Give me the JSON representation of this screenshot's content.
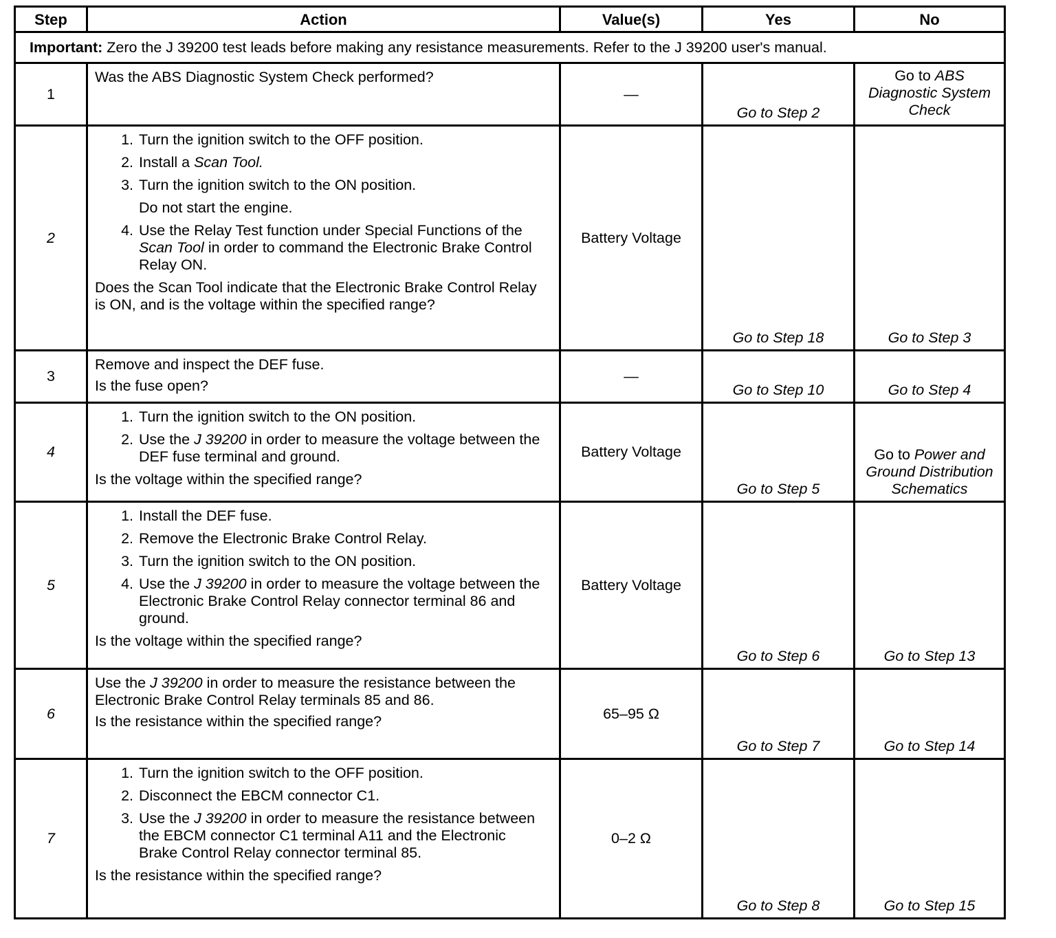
{
  "headers": [
    "Step",
    "Action",
    "Value(s)",
    "Yes",
    "No"
  ],
  "important": {
    "label": "Important:",
    "text": " Zero the J 39200 test leads before making any resistance measurements. Refer to the J 39200 user's manual."
  },
  "rows": [
    {
      "step": "1",
      "step_italic": false,
      "action": [
        {
          "type": "para",
          "parts": [
            {
              "t": "Was the ABS Diagnostic System Check performed?"
            }
          ]
        }
      ],
      "value": "—",
      "yes": [
        {
          "t": "Go to Step 2",
          "i": true
        }
      ],
      "no": [
        {
          "t": "Go to "
        },
        {
          "t": "ABS Diagnostic System Check",
          "i": true
        }
      ]
    },
    {
      "step": "2",
      "step_italic": true,
      "action": [
        {
          "type": "item",
          "num": "1.",
          "parts": [
            {
              "t": "Turn the ignition switch to the OFF position."
            }
          ]
        },
        {
          "type": "item",
          "num": "2.",
          "parts": [
            {
              "t": "Install a "
            },
            {
              "t": "Scan Tool.",
              "i": true
            }
          ]
        },
        {
          "type": "item",
          "num": "3.",
          "parts": [
            {
              "t": "Turn the ignition switch to the ON position."
            }
          ]
        },
        {
          "type": "cont",
          "parts": [
            {
              "t": "Do not start the engine."
            }
          ]
        },
        {
          "type": "item",
          "num": "4.",
          "parts": [
            {
              "t": "Use the Relay Test function under Special Functions of the "
            },
            {
              "t": "Scan Tool",
              "i": true
            },
            {
              "t": " in order to command the Electronic Brake Control Relay ON."
            }
          ]
        },
        {
          "type": "para",
          "parts": [
            {
              "t": "Does the Scan Tool indicate that the Electronic Brake Control Relay is ON, and is the voltage within the specified range?"
            }
          ]
        }
      ],
      "value": "Battery Voltage",
      "yes": [
        {
          "t": "Go to Step 18",
          "i": true
        }
      ],
      "no": [
        {
          "t": "Go to Step 3",
          "i": true
        }
      ]
    },
    {
      "step": "3",
      "step_italic": false,
      "action": [
        {
          "type": "para",
          "parts": [
            {
              "t": "Remove and inspect the DEF fuse."
            }
          ]
        },
        {
          "type": "para",
          "parts": [
            {
              "t": "Is the fuse open?"
            }
          ]
        }
      ],
      "value": "—",
      "yes": [
        {
          "t": "Go to Step 10",
          "i": true
        }
      ],
      "no": [
        {
          "t": "Go to Step 4",
          "i": true
        }
      ]
    },
    {
      "step": "4",
      "step_italic": true,
      "action": [
        {
          "type": "item",
          "num": "1.",
          "parts": [
            {
              "t": "Turn the ignition switch to the ON position."
            }
          ]
        },
        {
          "type": "item",
          "num": "2.",
          "parts": [
            {
              "t": "Use the "
            },
            {
              "t": "J 39200",
              "i": true
            },
            {
              "t": " in order to measure the voltage between the DEF fuse terminal and ground."
            }
          ]
        },
        {
          "type": "para",
          "parts": [
            {
              "t": "Is the voltage within the specified range?"
            }
          ]
        }
      ],
      "value": "Battery Voltage",
      "yes": [
        {
          "t": "Go to Step 5",
          "i": true
        }
      ],
      "no": [
        {
          "t": "Go to "
        },
        {
          "t": "Power and Ground Distribution Schematics",
          "i": true
        }
      ]
    },
    {
      "step": "5",
      "step_italic": true,
      "action": [
        {
          "type": "item",
          "num": "1.",
          "parts": [
            {
              "t": "Install the DEF fuse."
            }
          ]
        },
        {
          "type": "item",
          "num": "2.",
          "parts": [
            {
              "t": "Remove the Electronic Brake Control Relay."
            }
          ]
        },
        {
          "type": "item",
          "num": "3.",
          "parts": [
            {
              "t": "Turn the ignition switch to the ON position."
            }
          ]
        },
        {
          "type": "item",
          "num": "4.",
          "parts": [
            {
              "t": "Use the "
            },
            {
              "t": "J 39200",
              "i": true
            },
            {
              "t": " in order to measure the voltage between the Electronic Brake Control Relay connector terminal 86 and ground."
            }
          ]
        },
        {
          "type": "para",
          "parts": [
            {
              "t": "Is the voltage within the specified range?"
            }
          ]
        }
      ],
      "value": "Battery Voltage",
      "yes": [
        {
          "t": "Go to Step 6",
          "i": true
        }
      ],
      "no": [
        {
          "t": "Go to Step 13",
          "i": true
        }
      ]
    },
    {
      "step": "6",
      "step_italic": true,
      "action": [
        {
          "type": "para",
          "parts": [
            {
              "t": "Use the "
            },
            {
              "t": "J 39200",
              "i": true
            },
            {
              "t": " in order to measure the resistance between the Electronic Brake Control Relay terminals 85 and 86."
            }
          ]
        },
        {
          "type": "para",
          "parts": [
            {
              "t": "Is the resistance within the specified range?"
            }
          ]
        }
      ],
      "value": "65–95 Ω",
      "yes": [
        {
          "t": "Go to Step 7",
          "i": true
        }
      ],
      "no": [
        {
          "t": "Go to Step 14",
          "i": true
        }
      ]
    },
    {
      "step": "7",
      "step_italic": true,
      "action": [
        {
          "type": "item",
          "num": "1.",
          "parts": [
            {
              "t": "Turn the ignition switch to the OFF position."
            }
          ]
        },
        {
          "type": "item",
          "num": "2.",
          "parts": [
            {
              "t": "Disconnect the EBCM connector C1."
            }
          ]
        },
        {
          "type": "item",
          "num": "3.",
          "parts": [
            {
              "t": "Use the "
            },
            {
              "t": "J 39200",
              "i": true
            },
            {
              "t": " in order to measure the resistance between the EBCM connector C1 terminal A11 and the Electronic Brake Control Relay connector terminal 85."
            }
          ]
        },
        {
          "type": "para",
          "parts": [
            {
              "t": "Is the resistance within the specified range?"
            }
          ]
        }
      ],
      "value": "0–2 Ω",
      "yes": [
        {
          "t": "Go to Step 8",
          "i": true
        }
      ],
      "no": [
        {
          "t": "Go to Step 15",
          "i": true
        }
      ]
    }
  ]
}
